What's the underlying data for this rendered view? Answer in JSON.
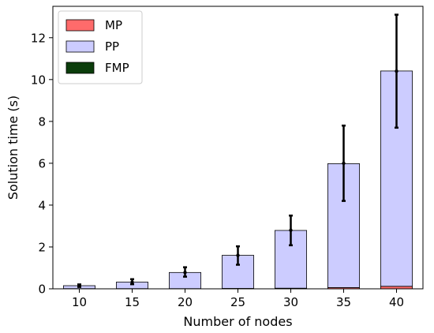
{
  "chart_data": {
    "type": "bar",
    "stacked": true,
    "categories": [
      "10",
      "15",
      "20",
      "25",
      "30",
      "35",
      "40"
    ],
    "xlabel": "Number of nodes",
    "ylabel": "Solution time (s)",
    "ylim": [
      0,
      13.5
    ],
    "yticks": [
      "0",
      "2",
      "4",
      "6",
      "8",
      "10",
      "12"
    ],
    "grid": false,
    "legend_position": "top-left",
    "series": [
      {
        "name": "MP",
        "color": "#ff6b6b",
        "values": [
          0.01,
          0.01,
          0.01,
          0.02,
          0.03,
          0.06,
          0.12
        ]
      },
      {
        "name": "PP",
        "color": "#ccccff",
        "values": [
          0.14,
          0.31,
          0.77,
          1.58,
          2.76,
          5.92,
          10.29
        ]
      },
      {
        "name": "FMP",
        "color": "#0b3d0b",
        "values": [
          0.0,
          0.0,
          0.0,
          0.0,
          0.0,
          0.0,
          0.0
        ]
      }
    ],
    "error_bars": {
      "center": [
        0.15,
        0.32,
        0.78,
        1.6,
        2.8,
        6.0,
        10.4
      ],
      "low": [
        0.09,
        0.22,
        0.58,
        1.15,
        2.08,
        4.2,
        7.7
      ],
      "high": [
        0.21,
        0.46,
        1.03,
        2.03,
        3.5,
        7.8,
        13.1
      ]
    }
  }
}
